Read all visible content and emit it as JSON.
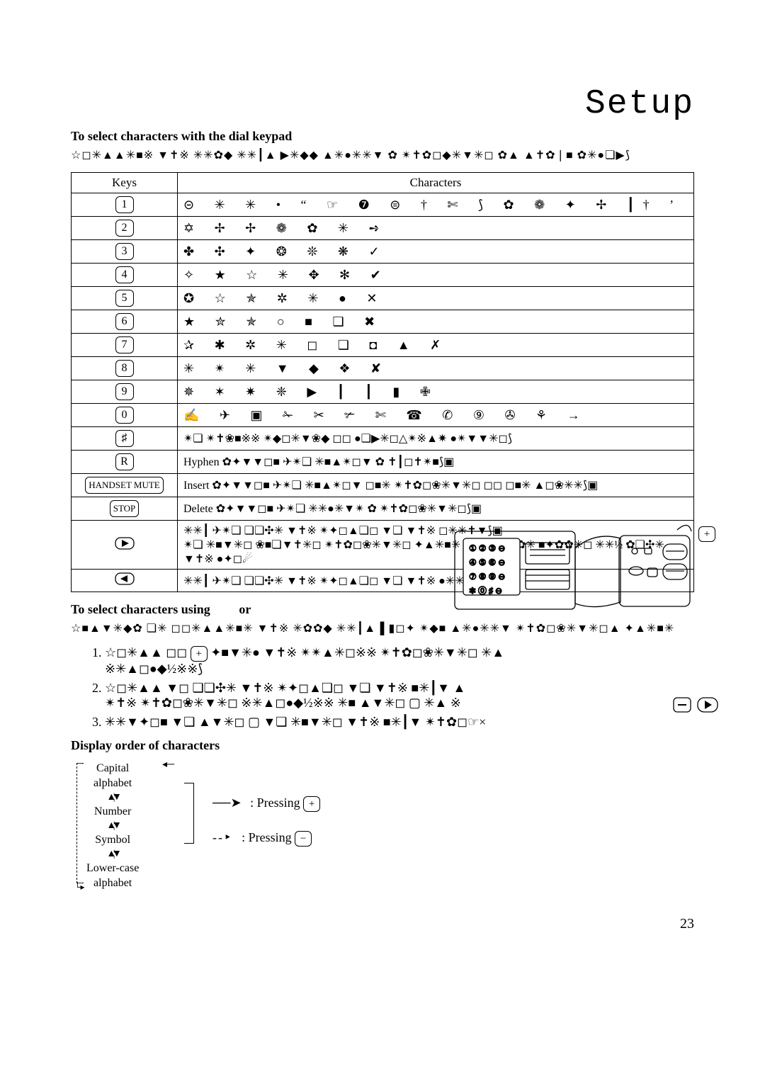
{
  "title": "Setup",
  "subsection1": "To select characters with the dial keypad",
  "subline1": "☆◻✳▲▲✳■※ ▼✝※ ✳✳✿◆ ✳✳┃▲ ▶✳◆◆ ▲✳●✳✳▼ ✿ ✴✝✿◻◆✳▼✳◻ ✿▲ ▲✝✿❘■ ✿✳●❏▶⟆",
  "table": {
    "head_keys": "Keys",
    "head_chars": "Characters",
    "rows": [
      {
        "key": "1",
        "chars": "⊝ ✳ ✳ • “ ☞ ❼ ⊜ † ✄ ⟆ ✿ ❁ ✦ ✢ ┃†   ’"
      },
      {
        "key": "2",
        "chars": "✡ ✢ ✢ ❁ ✿ ✳ ➺"
      },
      {
        "key": "3",
        "chars": "✤ ✣ ✦ ❂ ❊ ❋ ✓"
      },
      {
        "key": "4",
        "chars": "✧ ★ ☆ ✳ ✥ ✻ ✔"
      },
      {
        "key": "5",
        "chars": "✪ ☆ ✯ ✲ ✳ ● ✕"
      },
      {
        "key": "6",
        "chars": "★ ✮ ✯ ○ ■ ❏ ✖"
      },
      {
        "key": "7",
        "chars": "✰ ✱ ✲ ✳ ◻ ❏ ◘ ▲ ✗"
      },
      {
        "key": "8",
        "chars": "✳ ✴ ✳ ▼ ◆ ❖ ✘"
      },
      {
        "key": "9",
        "chars": "✵ ✶ ✷ ❈ ▶ ┃ ┃ ▮ ✙"
      },
      {
        "key": "0",
        "chars": "✍ ✈ ▣   ✁ ✂ ✃ ✄ ☎ ✆ ⑨ ✇ ⚘ →"
      }
    ],
    "rows_text": [
      {
        "key": "♯",
        "text": "✴❏ ✴✝❀■※※ ✴◆◻✳▼❀◆ ◻◻ ●❏▶✳◻△✴※▲✷ ●✴▼▼✳◻⟆"
      },
      {
        "key": "R",
        "text_prefix": "Hyphen ",
        "text": "✿✦▼▼◻■ ✈✴❏ ✳■▲✴◻▼ ✿ ✝┃◻✝✴■⟆▣"
      },
      {
        "key": "HANDSET MUTE",
        "text_prefix": "Insert ",
        "text": "✿✦▼▼◻■ ✈✴❏ ✳■▲✴◻▼ ◻■✳ ✴✝✿◻❀✳▼✳◻ ◻◻ ◻■✳ ▲◻❀✳✳⟆▣"
      },
      {
        "key": "STOP",
        "text_prefix": "Delete ",
        "text": "✿✦▼▼◻■ ✈✴❏ ✳✳●✳▼✴ ✿ ✴✝✿◻❀✳▼✳◻⟆▣"
      },
      {
        "key_svg": "right",
        "text": "✳✳┃ ✈✴❏ ❏❏✣✳ ▼✝※ ✴✦◻▲❏◻ ▼❏ ▼✝※ ◻✳✳✝▼⟆▣\n✴❏ ✳■▼✳◻ ❀■❏▼✝✳◻ ✴✝✿◻❀✳▼✳◻ ✦▲✳■✳ ▼✝※ ▲◆✿✳ ■✦✿✿✳◻ ✳✳½ ✿❏✣✳ ▼✝※ ●✦◻☄"
      },
      {
        "key_svg": "left",
        "text": "✳✳┃ ✈✴❏ ❏❏✣✳ ▼✝※ ✴✦◻▲❏◻ ▼❏ ▼✝※ ●✳✳▼⟆▣"
      }
    ]
  },
  "subsection2_prefix": "To select characters using",
  "subsection2_or": "or",
  "subline2": "☆■▲▼✳◆✿ ❏✳ ◻◻✳▲▲✳■✳ ▼✝※ ✳✿✿◆ ✳✳┃▲▐ ▮◻✦ ✴◆■ ▲✳●✳✳▼ ✴✝✿◻❀✳▼✳◻▲ ✦▲✳■✳",
  "steps": [
    {
      "n": "1.",
      "line1": "☆◻✳▲▲ ◻◻",
      "btn": "+",
      "line2": "✦■▼✳● ▼✝※ ✴✴▲✳◻※※ ✴✝✿◻❀✳▼✳◻ ✳▲",
      "cont": "※✳▲◻●◆½※※⟆"
    },
    {
      "n": "2.",
      "line1": "☆◻✳▲▲ ▼◻ ❏❏✣✳ ▼✝※ ✴✦◻▲❏◻ ▼❏ ▼✝※ ■✳┃▼ ▲",
      "cont": "✴✝※ ✴✝✿◻❀✳▼✳◻ ※✳▲◻●◆½※※ ✳■ ▲▼✳◻ ▢ ✳▲ ※"
    },
    {
      "n": "3.",
      "line1": "✳✳▼✦◻■ ▼❏ ▲▼✳◻ ▢ ▼❏ ✳■▼✳◻ ▼✝※ ■✳┃▼ ✴✝✿◻☞×"
    }
  ],
  "subsection3": "Display order of characters",
  "flow": {
    "items": [
      "Capital",
      "alphabet",
      "Number",
      "Symbol",
      "Lower-case",
      "alphabet"
    ]
  },
  "press_plus": ": Pressing",
  "press_minus": ": Pressing",
  "plus": "+",
  "minus": "−",
  "arrow_solid": "──➤",
  "arrow_dash": "--‣",
  "page": "23",
  "device_svg": "<svg width='340' height='150' viewBox='0 0 340 150' xmlns='http://www.w3.org/2000/svg'><g fill='none' stroke='#000' stroke-width='1.3'><rect x='2' y='20' width='170' height='110' rx='6'/><rect x='14' y='30' width='80' height='80' rx='4' fill='#fff'/><g font-size='12' font-family='serif'><text x='22' y='48' fill='#000'>① ② ③ ⊖</text><text x='22' y='68' fill='#000'>④ ⑤ ⑥ ⊖</text><text x='22' y='88' fill='#000'>⑦ ⑧ ⑨ ⊖</text><text x='22' y='108' fill='#000'>✻ ⓪ ♯ ⊖</text></g><rect x='102' y='36' width='62' height='30' rx='3'/><line x1='108' y1='46' x2='158' y2='46'/><line x1='108' y1='54' x2='158' y2='54'/><rect x='102' y='74' width='62' height='28' rx='3'/><line x1='102' y1='82' x2='164' y2='82'/><line x1='102' y1='90' x2='164' y2='90'/><path d='M172 44 Q200 20 236 30 L236 120 Q200 132 172 122 Z'/><rect x='234' y='26' width='100' height='100' rx='8'/><circle cx='256' cy='48' r='4'/><rect x='270' y='44' width='10' height='8' rx='2'/><rect x='296' y='38' width='34' height='22' rx='10'/><line x1='300' y1='48' x2='326' y2='48'/><rect x='296' y='66' width='34' height='22' rx='10'/><line x1='300' y1='76' x2='326' y2='76'/><ellipse cx='258' cy='76' rx='10' ry='6'/><rect x='274' y='72' width='14' height='12' rx='3'/><path d='M316 18 Q332 4 336 20 L336 20'/></g></svg>",
  "btn_right_svg": "<svg width='28' height='18' viewBox='0 0 28 18'><rect x='1' y='1' width='26' height='16' rx='7' fill='none' stroke='#000' stroke-width='1.3'/><polygon points='10,4 20,9 10,14' fill='#000'/></svg>",
  "btn_left_svg": "<svg width='28' height='18' viewBox='0 0 28 18'><rect x='1' y='1' width='26' height='16' rx='7' fill='none' stroke='#000' stroke-width='1.3'/><polygon points='18,4 8,9 18,14' fill='#000'/></svg>",
  "btn_minus_bottom_svg": "<svg width='26' height='22' viewBox='0 0 26 22'><rect x='1' y='1' width='24' height='20' rx='5' fill='none' stroke='#000' stroke-width='1.3'/><line x1='7' y1='11' x2='19' y2='11' stroke='#000' stroke-width='2'/></svg>",
  "btn_right_bottom_svg": "<svg width='30' height='22' viewBox='0 0 30 22'><rect x='1' y='1' width='28' height='20' rx='9' fill='none' stroke='#000' stroke-width='1.3'/><polygon points='11,5 21,11 11,17' fill='#000'/></svg>"
}
